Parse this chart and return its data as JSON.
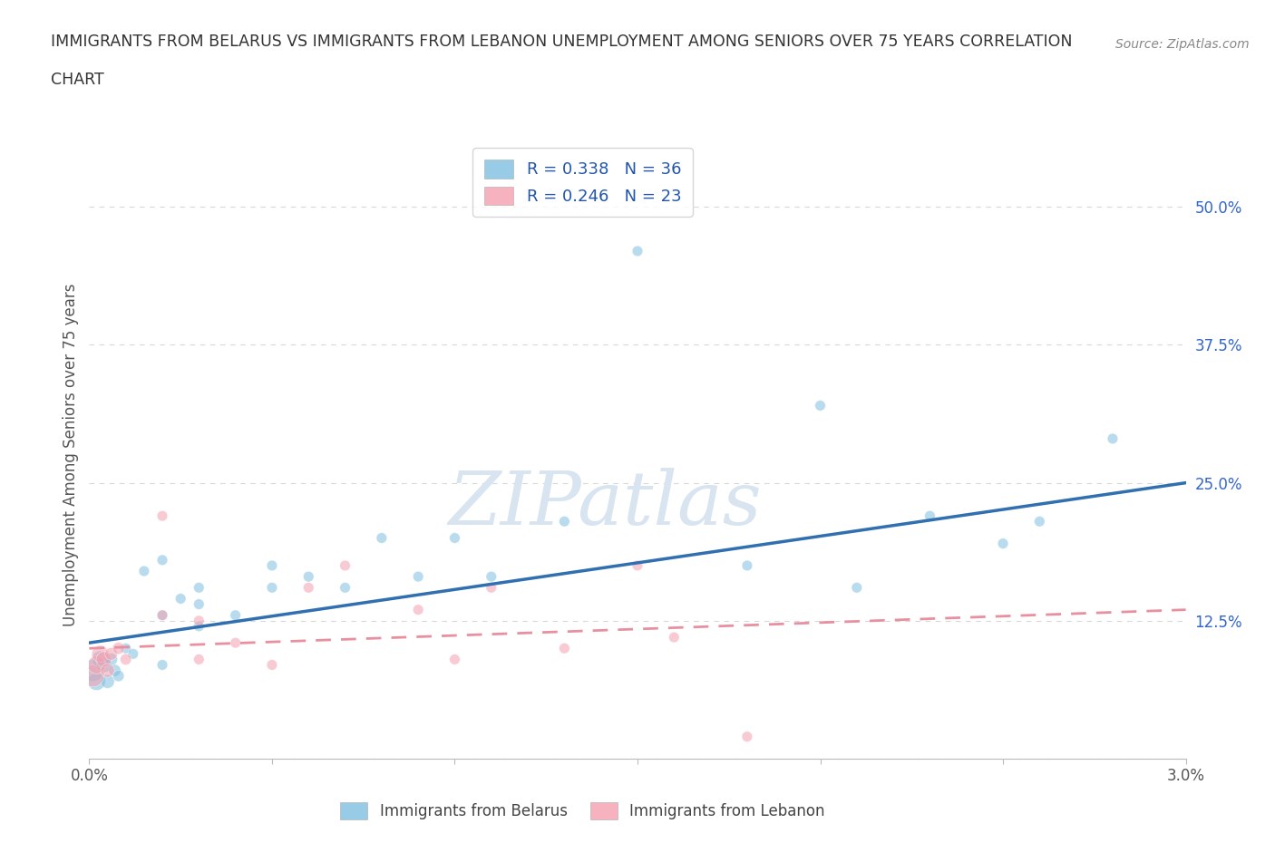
{
  "title_line1": "IMMIGRANTS FROM BELARUS VS IMMIGRANTS FROM LEBANON UNEMPLOYMENT AMONG SENIORS OVER 75 YEARS CORRELATION",
  "title_line2": "CHART",
  "source": "Source: ZipAtlas.com",
  "ylabel": "Unemployment Among Seniors over 75 years",
  "xlim": [
    0.0,
    0.03
  ],
  "ylim": [
    0.0,
    0.55
  ],
  "xtick_positions": [
    0.0,
    0.005,
    0.01,
    0.015,
    0.02,
    0.025,
    0.03
  ],
  "xticklabels": [
    "0.0%",
    "",
    "",
    "",
    "",
    "",
    "3.0%"
  ],
  "ytick_positions": [
    0.0,
    0.125,
    0.25,
    0.375,
    0.5
  ],
  "ytick_labels": [
    "",
    "12.5%",
    "25.0%",
    "37.5%",
    "50.0%"
  ],
  "belarus_color": "#7fbfdf",
  "lebanon_color": "#f4a0b0",
  "belarus_line_color": "#3070b0",
  "lebanon_line_color": "#e890a0",
  "belarus_R": 0.338,
  "belarus_N": 36,
  "lebanon_R": 0.246,
  "lebanon_N": 23,
  "legend_text_color": "#2255aa",
  "watermark": "ZIPatlas",
  "watermark_color": "#d8e4f0",
  "grid_color": "#d8d8d8",
  "belarus_scatter_x": [
    0.0001,
    0.0002,
    0.0003,
    0.0004,
    0.0005,
    0.0006,
    0.0007,
    0.0008,
    0.001,
    0.0012,
    0.0015,
    0.002,
    0.002,
    0.002,
    0.0025,
    0.003,
    0.003,
    0.003,
    0.004,
    0.005,
    0.005,
    0.006,
    0.007,
    0.008,
    0.009,
    0.01,
    0.011,
    0.013,
    0.015,
    0.018,
    0.02,
    0.021,
    0.023,
    0.025,
    0.026,
    0.028
  ],
  "belarus_scatter_y": [
    0.08,
    0.07,
    0.09,
    0.085,
    0.07,
    0.09,
    0.08,
    0.075,
    0.1,
    0.095,
    0.17,
    0.13,
    0.18,
    0.085,
    0.145,
    0.12,
    0.14,
    0.155,
    0.13,
    0.175,
    0.155,
    0.165,
    0.155,
    0.2,
    0.165,
    0.2,
    0.165,
    0.215,
    0.46,
    0.175,
    0.32,
    0.155,
    0.22,
    0.195,
    0.215,
    0.29
  ],
  "belarus_scatter_size": [
    300,
    200,
    180,
    150,
    120,
    100,
    90,
    80,
    70,
    70,
    70,
    70,
    70,
    70,
    70,
    70,
    70,
    70,
    70,
    70,
    70,
    70,
    70,
    70,
    70,
    70,
    70,
    70,
    70,
    70,
    70,
    70,
    70,
    70,
    70,
    70
  ],
  "lebanon_scatter_x": [
    0.0001,
    0.0002,
    0.0003,
    0.0004,
    0.0005,
    0.0006,
    0.0008,
    0.001,
    0.002,
    0.002,
    0.003,
    0.003,
    0.004,
    0.005,
    0.006,
    0.007,
    0.009,
    0.01,
    0.011,
    0.013,
    0.015,
    0.016,
    0.018
  ],
  "lebanon_scatter_y": [
    0.075,
    0.085,
    0.095,
    0.09,
    0.08,
    0.095,
    0.1,
    0.09,
    0.13,
    0.22,
    0.09,
    0.125,
    0.105,
    0.085,
    0.155,
    0.175,
    0.135,
    0.09,
    0.155,
    0.1,
    0.175,
    0.11,
    0.02
  ],
  "lebanon_scatter_size": [
    300,
    200,
    180,
    150,
    120,
    100,
    90,
    80,
    70,
    70,
    70,
    70,
    70,
    70,
    70,
    70,
    70,
    70,
    70,
    70,
    70,
    70,
    70
  ],
  "belarus_trend_x": [
    0.0,
    0.03
  ],
  "belarus_trend_y": [
    0.105,
    0.25
  ],
  "lebanon_trend_x": [
    0.0,
    0.03
  ],
  "lebanon_trend_y": [
    0.1,
    0.135
  ]
}
